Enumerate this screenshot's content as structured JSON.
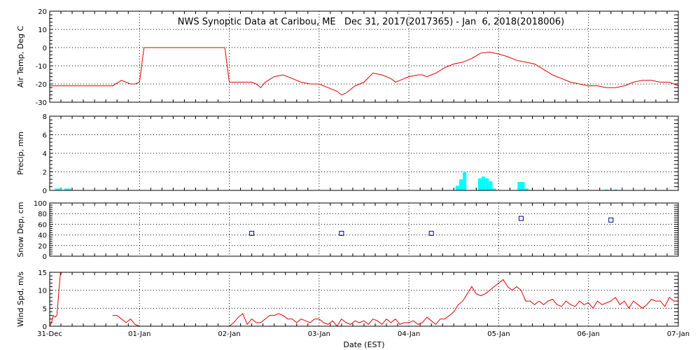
{
  "title": "NWS Synoptic Data at Caribou, ME   Dec 31, 2017(2017365) - Jan  6, 2018(2018006)",
  "xlabel": "Date (EST)",
  "colors": {
    "line": "#e00000",
    "bar": "#00ffff",
    "marker": "#00008b",
    "grid": "#000000"
  },
  "chart_data": [
    {
      "type": "line",
      "ylabel": "Air Temp, Deg C",
      "x_unit": "days since Dec 31 00:00",
      "xlim": [
        0,
        7
      ],
      "ylim": [
        -30,
        20
      ],
      "yticks": [
        20,
        10,
        0,
        -10,
        -20,
        -30
      ],
      "series": [
        {
          "x": [
            0,
            0.3,
            0.4,
            0.6,
            0.7,
            0.8,
            0.9,
            0.95,
            1.0,
            1.05,
            1.5,
            1.9,
            1.95,
            2.0,
            2.1,
            2.2,
            2.25,
            2.3,
            2.35,
            2.4,
            2.5,
            2.6,
            2.7,
            2.8,
            2.9,
            3.0,
            3.1,
            3.2,
            3.25,
            3.3,
            3.4,
            3.5,
            3.6,
            3.7,
            3.8,
            3.85,
            3.9,
            4.0,
            4.1,
            4.15,
            4.2,
            4.3,
            4.4,
            4.5,
            4.6,
            4.7,
            4.8,
            4.9,
            5.0,
            5.1,
            5.2,
            5.3,
            5.4,
            5.5,
            5.6,
            5.7,
            5.8,
            5.9,
            6.0,
            6.1,
            6.2,
            6.3,
            6.4,
            6.5,
            6.6,
            6.7,
            6.8,
            6.9,
            7.0
          ],
          "y": [
            -21,
            -21,
            -21,
            -21,
            -21,
            -18,
            -20,
            -20,
            -19,
            0,
            0,
            0,
            0,
            -19,
            -19,
            -19,
            -19,
            -20,
            -22,
            -19,
            -16,
            -15,
            -17,
            -19,
            -20,
            -20,
            -22,
            -24,
            -26,
            -25,
            -21,
            -19,
            -14,
            -15,
            -17,
            -19,
            -18,
            -16,
            -15,
            -15,
            -16,
            -14,
            -11,
            -9,
            -8,
            -6,
            -3,
            -2.5,
            -3.5,
            -5,
            -7,
            -8,
            -9,
            -12,
            -15,
            -17,
            -19,
            -20,
            -21,
            -21,
            -22,
            -22,
            -21,
            -19,
            -18,
            -18,
            -19,
            -19,
            -21
          ]
        }
      ]
    },
    {
      "type": "bar",
      "ylabel": "Precip, mm",
      "x_unit": "days since Dec 31 00:00",
      "xlim": [
        0,
        7
      ],
      "ylim": [
        0,
        8
      ],
      "yticks": [
        8,
        6,
        4,
        2,
        0
      ],
      "bar_width": 0.04,
      "x": [
        0.08,
        0.12,
        0.18,
        0.22,
        4.54,
        4.58,
        4.62,
        4.79,
        4.83,
        4.87,
        4.91,
        4.95,
        5.23,
        5.27,
        5.31,
        6.2,
        6.3
      ],
      "values": [
        0.2,
        0.2,
        0.2,
        0.2,
        0.5,
        1.2,
        2.0,
        1.3,
        1.5,
        1.3,
        1.0,
        0.2,
        0.9,
        0.9,
        0.2,
        0.1,
        0.1
      ]
    },
    {
      "type": "scatter",
      "ylabel": "Snow Dep, cm",
      "x_unit": "days since Dec 31 00:00",
      "xlim": [
        0,
        7
      ],
      "ylim": [
        0,
        100
      ],
      "yticks": [
        100,
        80,
        60,
        40,
        20,
        0
      ],
      "x": [
        2.25,
        3.25,
        4.25,
        5.25,
        6.25
      ],
      "values": [
        43,
        43,
        43,
        71,
        68
      ]
    },
    {
      "type": "line",
      "ylabel": "Wind Spd, m/s",
      "x_unit": "days since Dec 31 00:00",
      "xlim": [
        0,
        7
      ],
      "ylim": [
        0,
        15
      ],
      "yticks": [
        15,
        10,
        5,
        0
      ],
      "x_tick_labels": [
        "31-Dec",
        "01-Jan",
        "02-Jan",
        "03-Jan",
        "04-Jan",
        "05-Jan",
        "06-Jan",
        "07-Jan"
      ],
      "series": [
        {
          "x": [
            0,
            0.02,
            0.04,
            0.06,
            0.08,
            0.1,
            0.12
          ],
          "y": [
            0,
            1,
            3,
            2.5,
            3,
            9,
            15
          ]
        },
        {
          "x": [
            0.7,
            0.75,
            0.8,
            0.85,
            0.9,
            0.95,
            1.0
          ],
          "y": [
            3,
            3,
            2,
            1,
            2,
            0.5,
            0
          ]
        },
        {
          "x": [
            2.0,
            2.05,
            2.1,
            2.15,
            2.2,
            2.25,
            2.3,
            2.35,
            2.4,
            2.45,
            2.5,
            2.55,
            2.6,
            2.65,
            2.7,
            2.75,
            2.8,
            2.85,
            2.9,
            2.95,
            3.0,
            3.05,
            3.1,
            3.15,
            3.2,
            3.25,
            3.3,
            3.35,
            3.4,
            3.45,
            3.5,
            3.55,
            3.6,
            3.65,
            3.7,
            3.75,
            3.8,
            3.85,
            3.9,
            3.95,
            4.0,
            4.05,
            4.1,
            4.15,
            4.2,
            4.25,
            4.3,
            4.35,
            4.4,
            4.45,
            4.5,
            4.55,
            4.6,
            4.65,
            4.7,
            4.75,
            4.8,
            4.85,
            4.9,
            4.95,
            5.0,
            5.05,
            5.1,
            5.15,
            5.2,
            5.25,
            5.3,
            5.35,
            5.4,
            5.45,
            5.5,
            5.55,
            5.6,
            5.65,
            5.7,
            5.75,
            5.8,
            5.85,
            5.9,
            5.95,
            6.0,
            6.05,
            6.1,
            6.15,
            6.2,
            6.25,
            6.3,
            6.35,
            6.4,
            6.45,
            6.5,
            6.55,
            6.6,
            6.65,
            6.7,
            6.75,
            6.8,
            6.85,
            6.9,
            6.95,
            7.0
          ],
          "y": [
            0,
            1,
            2.5,
            3.5,
            0.5,
            2,
            1,
            1,
            2,
            3,
            3,
            3.5,
            3,
            2,
            2,
            1,
            2,
            1.5,
            1,
            2,
            2,
            1,
            0.5,
            1.5,
            0,
            2,
            1,
            0.5,
            1.5,
            1,
            1.5,
            0.5,
            2,
            1.5,
            0.5,
            2,
            1,
            2,
            0.5,
            1,
            1,
            1.5,
            0.5,
            1,
            2.5,
            1.5,
            0.5,
            2,
            2,
            3,
            4,
            6,
            7,
            9,
            11,
            9,
            8.5,
            9,
            10,
            11,
            12,
            13,
            11,
            10,
            11,
            10,
            7,
            7,
            6,
            7,
            6,
            7,
            7.5,
            6,
            5.5,
            7,
            6,
            5.5,
            7,
            6,
            6.5,
            5,
            7,
            6,
            6.5,
            7,
            8,
            6,
            7,
            5,
            7,
            6,
            5,
            6,
            7.5,
            7,
            7,
            5.5,
            8,
            7,
            7
          ]
        }
      ]
    }
  ]
}
